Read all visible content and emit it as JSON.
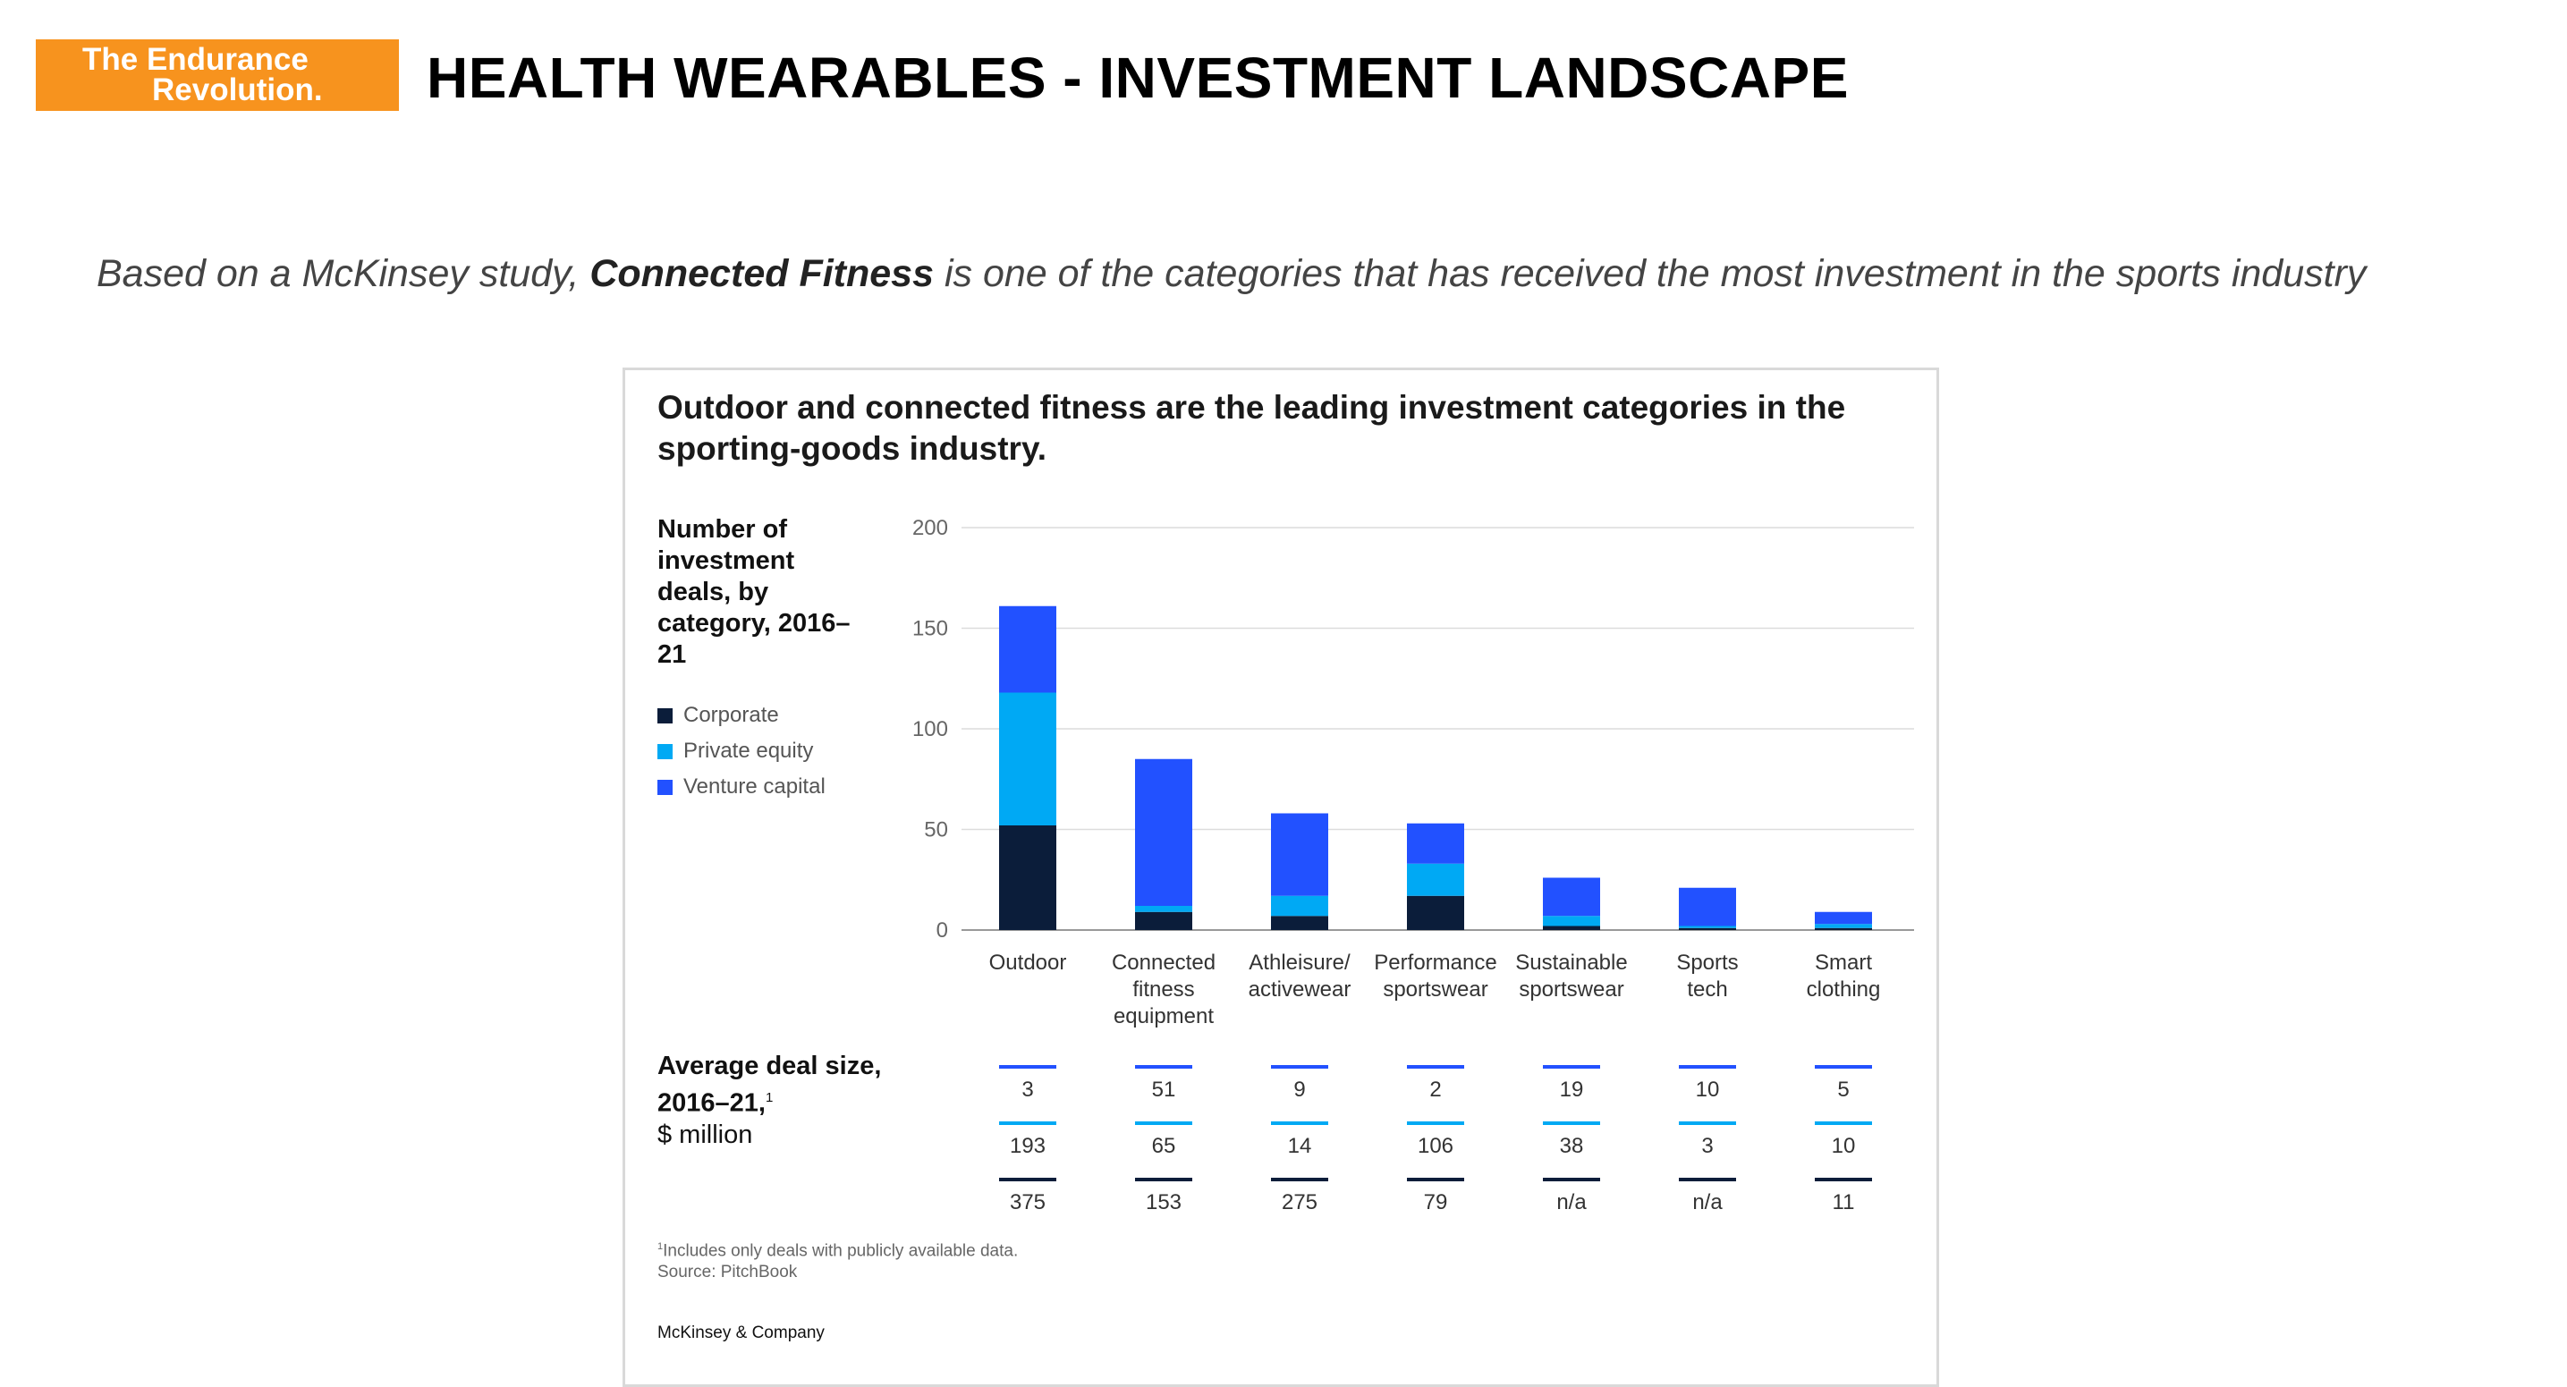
{
  "header": {
    "logo_line1": "The Endurance",
    "logo_line2": "Revolution.",
    "title": "HEALTH WEARABLES - INVESTMENT LANDSCAPE"
  },
  "subtitle": {
    "prefix": "Based on a McKinsey study, ",
    "emphasis": "Connected Fitness",
    "suffix": " is one of the categories that has received the most investment in the sports industry"
  },
  "colors": {
    "brand": "#f7931e",
    "corporate": "#0b1d3a",
    "private_equity": "#00a9f4",
    "venture_capital": "#2251ff"
  },
  "chart_data": {
    "type": "bar",
    "stacked": true,
    "title": "Outdoor and connected fitness are the leading investment categories in the sporting-goods industry.",
    "ylabel": "Number of investment deals, by category, 2016–21",
    "ylim": [
      0,
      200
    ],
    "yticks": [
      0,
      50,
      100,
      150,
      200
    ],
    "grid": true,
    "categories": [
      [
        "Outdoor"
      ],
      [
        "Connected",
        "fitness",
        "equipment"
      ],
      [
        "Athleisure/",
        "activewear"
      ],
      [
        "Performance",
        "sportswear"
      ],
      [
        "Sustainable",
        "sportswear"
      ],
      [
        "Sports",
        "tech"
      ],
      [
        "Smart",
        "clothing"
      ]
    ],
    "series": [
      {
        "name": "Corporate",
        "color": "#0b1d3a",
        "values": [
          52,
          9,
          7,
          17,
          2,
          1,
          1
        ]
      },
      {
        "name": "Private equity",
        "color": "#00a9f4",
        "values": [
          66,
          3,
          10,
          16,
          5,
          1,
          2
        ]
      },
      {
        "name": "Venture capital",
        "color": "#2251ff",
        "values": [
          43,
          73,
          41,
          20,
          19,
          19,
          6
        ]
      }
    ],
    "avg_deal_size": {
      "title_bold": "Average deal size, 2016–21,",
      "title_sup": "1",
      "unit": "$ million",
      "rows": [
        {
          "series": "Venture capital",
          "color": "#2251ff",
          "values": [
            "3",
            "51",
            "9",
            "2",
            "19",
            "10",
            "5"
          ]
        },
        {
          "series": "Private equity",
          "color": "#00a9f4",
          "values": [
            "193",
            "65",
            "14",
            "106",
            "38",
            "3",
            "10"
          ]
        },
        {
          "series": "Corporate",
          "color": "#0b1d3a",
          "values": [
            "375",
            "153",
            "275",
            "79",
            "n/a",
            "n/a",
            "11"
          ]
        }
      ]
    },
    "footnote_sup": "1",
    "footnote": "Includes only deals with publicly available data.",
    "source": "Source: PitchBook",
    "publisher": "McKinsey & Company"
  }
}
